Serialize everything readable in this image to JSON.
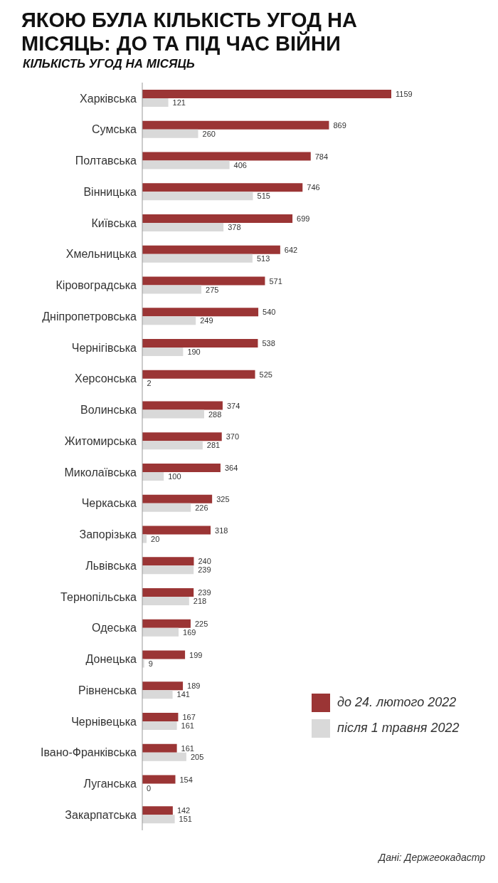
{
  "chart_data": {
    "type": "bar",
    "orientation": "horizontal",
    "title": "ЯКОЮ БУЛА КІЛЬКІСТЬ УГОД НА МІСЯЦЬ: ДО ТА ПІД ЧАС ВІЙНИ",
    "subtitle": "КІЛЬКІСТЬ УГОД НА МІСЯЦЬ",
    "categories": [
      "Харківська",
      "Сумська",
      "Полтавська",
      "Вінницька",
      "Київська",
      "Хмельницька",
      "Кіровоградська",
      "Дніпропетровська",
      "Чернігівська",
      "Херсонська",
      "Волинська",
      "Житомирська",
      "Миколаївська",
      "Черкаська",
      "Запорізька",
      "Львівська",
      "Тернопільська",
      "Одеська",
      "Донецька",
      "Рівненська",
      "Чернівецька",
      "Івано-Франківська",
      "Луганська",
      "Закарпатська"
    ],
    "series": [
      {
        "name": "до 24. лютого 2022",
        "color": "#9b3535",
        "values": [
          1159,
          869,
          784,
          746,
          699,
          642,
          571,
          540,
          538,
          525,
          374,
          370,
          364,
          325,
          318,
          240,
          239,
          225,
          199,
          189,
          167,
          161,
          154,
          142
        ]
      },
      {
        "name": "після 1 травня 2022",
        "color": "#d9d9d9",
        "values": [
          121,
          260,
          406,
          515,
          378,
          513,
          275,
          249,
          190,
          2,
          288,
          281,
          100,
          226,
          20,
          239,
          218,
          169,
          9,
          141,
          161,
          205,
          0,
          151
        ]
      }
    ],
    "data_labels": true,
    "legend": "right",
    "grid": false,
    "tick_labels": "y",
    "annotations": [
      "Дані: Держгеокадастр"
    ]
  }
}
